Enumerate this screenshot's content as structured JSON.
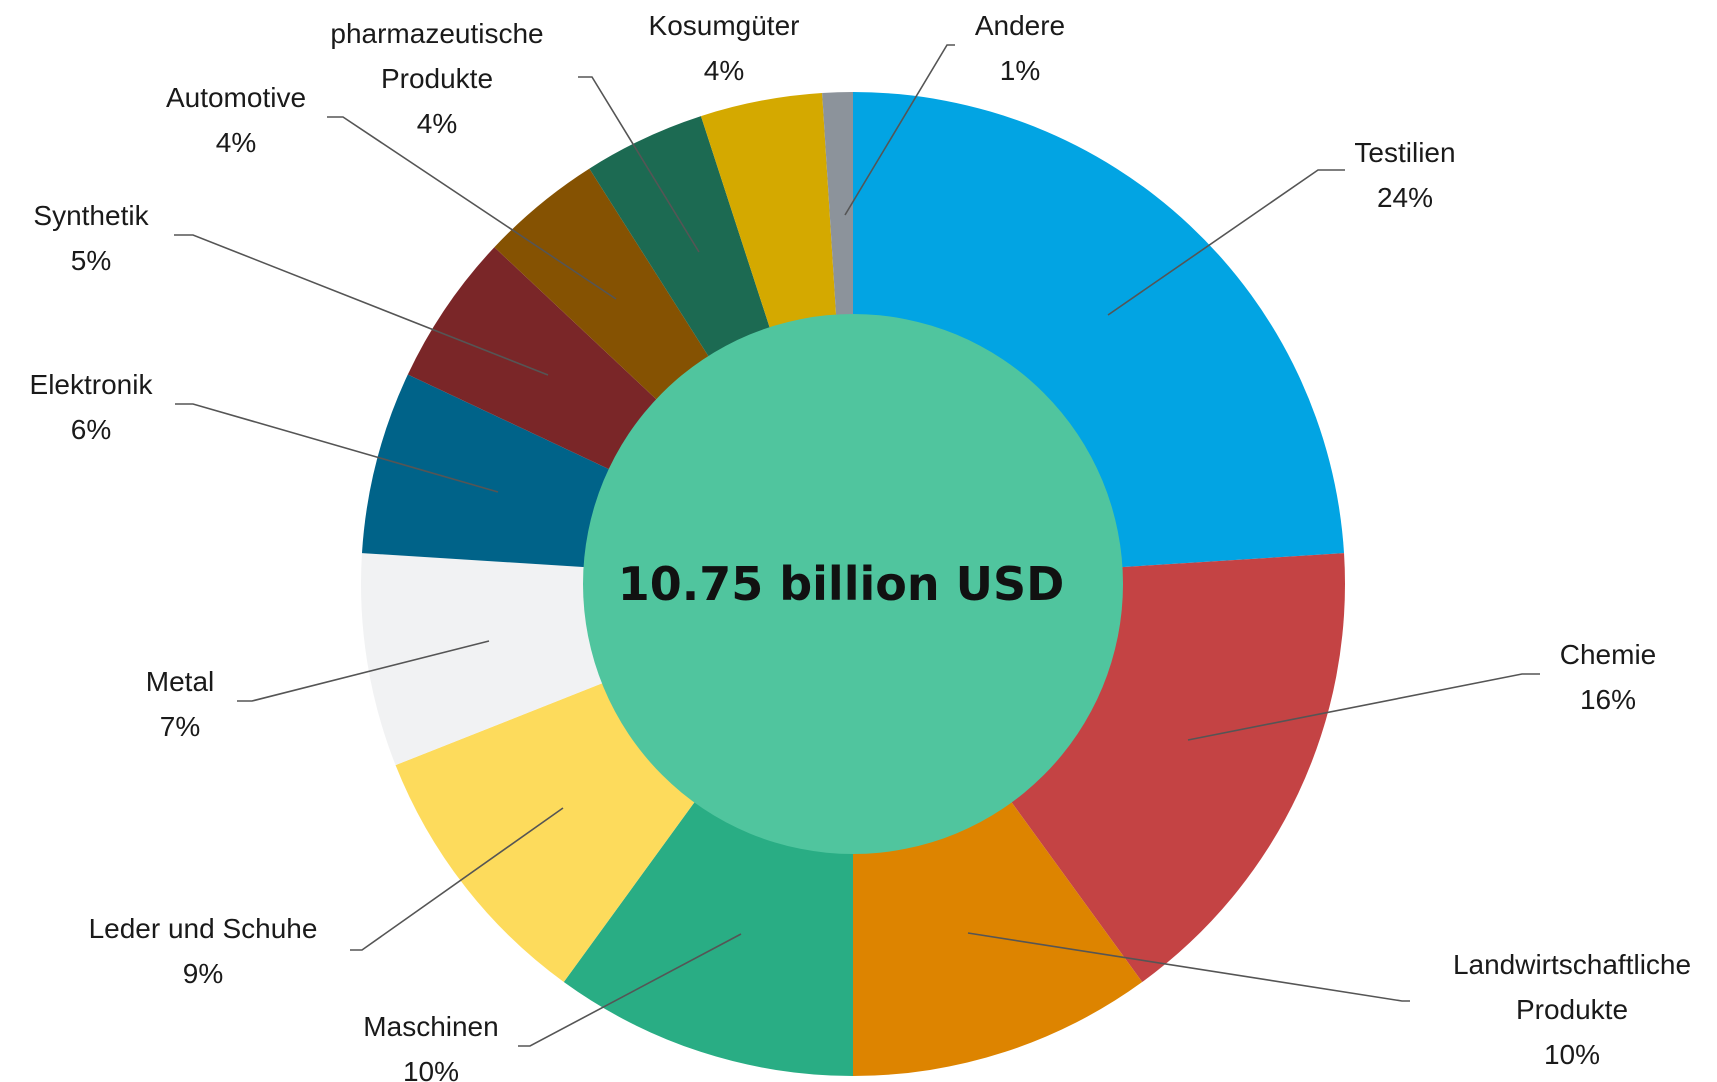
{
  "chart_data": {
    "type": "pie",
    "center_label": "10.75 billion USD",
    "center_color": "#50C59E",
    "slices": [
      {
        "label": [
          "Testilien"
        ],
        "percent_label": "24%",
        "value": 24,
        "color": "#02A4E3"
      },
      {
        "label": [
          "Chemie"
        ],
        "percent_label": "16%",
        "value": 16,
        "color": "#C44344"
      },
      {
        "label": [
          "Landwirtschaftliche",
          "Produkte"
        ],
        "percent_label": "10%",
        "value": 10,
        "color": "#DD8400"
      },
      {
        "label": [
          "Maschinen"
        ],
        "percent_label": "10%",
        "value": 10,
        "color": "#29AD84"
      },
      {
        "label": [
          "Leder und Schuhe"
        ],
        "percent_label": "9%",
        "value": 9,
        "color": "#FDDB5C"
      },
      {
        "label": [
          "Metal"
        ],
        "percent_label": "7%",
        "value": 7,
        "color": "#F1F2F3"
      },
      {
        "label": [
          "Elektronik"
        ],
        "percent_label": "6%",
        "value": 6,
        "color": "#006389"
      },
      {
        "label": [
          "Synthetik"
        ],
        "percent_label": "5%",
        "value": 5,
        "color": "#7A2628"
      },
      {
        "label": [
          "Automotive"
        ],
        "percent_label": "4%",
        "value": 4,
        "color": "#855202"
      },
      {
        "label": [
          "pharmazeutische",
          "Produkte"
        ],
        "percent_label": "4%",
        "value": 4,
        "color": "#1C6A52"
      },
      {
        "label": [
          "Kosumgüter"
        ],
        "percent_label": "4%",
        "value": 4,
        "color": "#D4A900"
      },
      {
        "label": [
          "Andere"
        ],
        "percent_label": "1%",
        "value": 1,
        "color": "#8C939B"
      }
    ]
  }
}
